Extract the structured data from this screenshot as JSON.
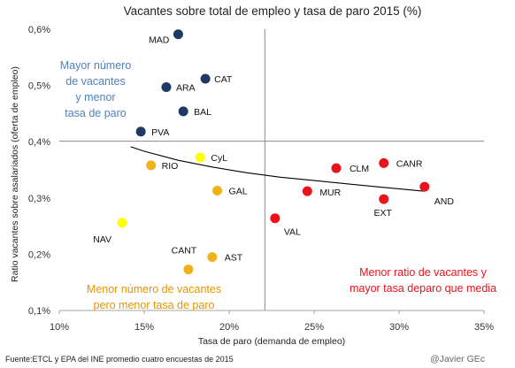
{
  "chart_data": {
    "type": "scatter",
    "title": "Vacantes sobre total de empleo y tasa de paro 2015  (%)",
    "xlabel": "Tasa de paro (demanda de empleo)",
    "ylabel": "Ratio vacantes sobre asalariados (oferta de empleo)",
    "xlim": [
      10,
      35
    ],
    "ylim": [
      0.1,
      0.6
    ],
    "x_ticks": [
      10,
      15,
      20,
      25,
      30,
      35
    ],
    "x_tick_labels": [
      "10%",
      "15%",
      "20%",
      "25%",
      "30%",
      "35%"
    ],
    "y_ticks": [
      0.1,
      0.2,
      0.3,
      0.4,
      0.5,
      0.6
    ],
    "y_tick_labels": [
      "0,1%",
      "0,2%",
      "0,3%",
      "0,4%",
      "0,5%",
      "0,6%"
    ],
    "grid": false,
    "reference_lines": {
      "x": 22.1,
      "y": 0.401
    },
    "trendline": {
      "x": [
        14.2,
        15,
        17,
        19,
        21,
        23,
        25,
        27,
        29,
        31.5
      ],
      "y": [
        0.391,
        0.383,
        0.367,
        0.355,
        0.345,
        0.337,
        0.331,
        0.325,
        0.319,
        0.312
      ]
    },
    "colors": {
      "navy": "#1f3864",
      "yellow": "#ffff00",
      "amber": "#f0b21a",
      "red": "#e8141b",
      "blue_text": "#4f81bd",
      "orange_text": "#e69500",
      "red_text": "#e8141b"
    },
    "points": [
      {
        "label": "MAD",
        "x": 17.0,
        "y": 0.591,
        "color": "navy"
      },
      {
        "label": "CAT",
        "x": 18.6,
        "y": 0.512,
        "color": "navy"
      },
      {
        "label": "ARA",
        "x": 16.3,
        "y": 0.497,
        "color": "navy"
      },
      {
        "label": "BAL",
        "x": 17.3,
        "y": 0.454,
        "color": "navy"
      },
      {
        "label": "PVA",
        "x": 14.8,
        "y": 0.418,
        "color": "navy"
      },
      {
        "label": "CyL",
        "x": 18.3,
        "y": 0.372,
        "color": "yellow"
      },
      {
        "label": "RIO",
        "x": 15.4,
        "y": 0.358,
        "color": "amber"
      },
      {
        "label": "GAL",
        "x": 19.3,
        "y": 0.313,
        "color": "amber"
      },
      {
        "label": "NAV",
        "x": 13.7,
        "y": 0.256,
        "color": "yellow"
      },
      {
        "label": "CANT",
        "x": 17.6,
        "y": 0.173,
        "color": "amber"
      },
      {
        "label": "AST",
        "x": 19.0,
        "y": 0.195,
        "color": "amber"
      },
      {
        "label": "CLM",
        "x": 26.3,
        "y": 0.353,
        "color": "red"
      },
      {
        "label": "CANR",
        "x": 29.1,
        "y": 0.362,
        "color": "red"
      },
      {
        "label": "MUR",
        "x": 24.6,
        "y": 0.312,
        "color": "red"
      },
      {
        "label": "AND",
        "x": 31.5,
        "y": 0.32,
        "color": "red"
      },
      {
        "label": "EXT",
        "x": 29.1,
        "y": 0.298,
        "color": "red"
      },
      {
        "label": "VAL",
        "x": 22.7,
        "y": 0.264,
        "color": "red"
      }
    ],
    "annotations": [
      {
        "lines": [
          "Mayor número",
          "de vacantes",
          "y menor",
          "tasa de paro"
        ],
        "color": "blue_text"
      },
      {
        "lines": [
          "Menor número de vacantes",
          "pero menor tasa de paro"
        ],
        "color": "orange_text"
      },
      {
        "lines": [
          "Menor ratio de vacantes y",
          "mayor tasa deparo que media"
        ],
        "color": "red_text"
      }
    ]
  },
  "footer": {
    "source": "Fuente:ETCL y EPA del INE promedio cuatro encuestas de 2015",
    "credit": "@Javier GEc"
  }
}
